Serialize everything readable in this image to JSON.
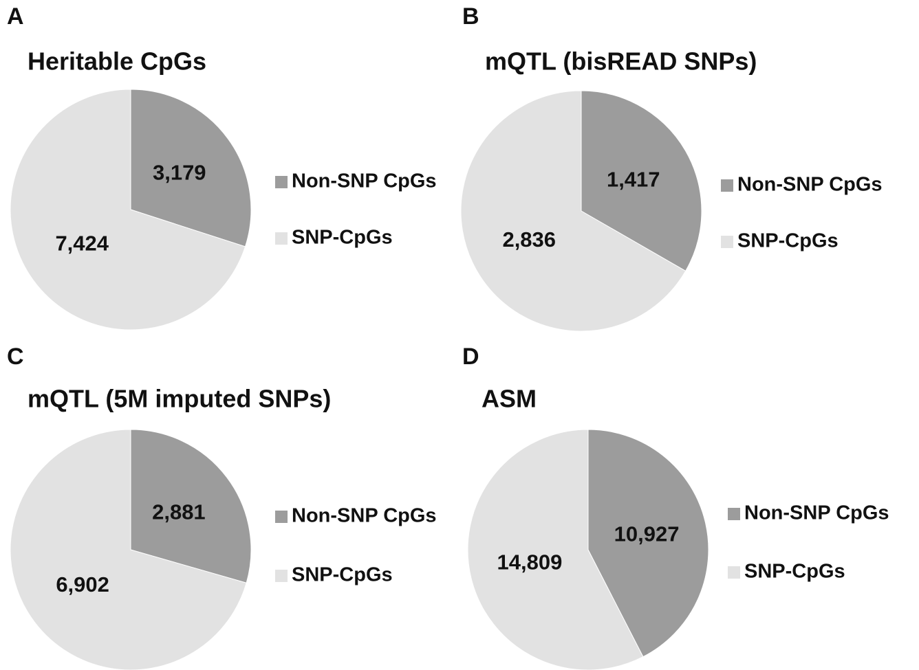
{
  "chart_data": [
    {
      "type": "pie",
      "panel": "A",
      "title": "Heritable CpGs",
      "categories": [
        "Non-SNP CpGs",
        "SNP-CpGs"
      ],
      "values": [
        3179,
        7424
      ],
      "value_labels": [
        "3,179",
        "7,424"
      ],
      "colors": [
        "#9c9c9c",
        "#e2e2e2"
      ]
    },
    {
      "type": "pie",
      "panel": "B",
      "title": "mQTL (bisREAD SNPs)",
      "categories": [
        "Non-SNP CpGs",
        "SNP-CpGs"
      ],
      "values": [
        1417,
        2836
      ],
      "value_labels": [
        "1,417",
        "2,836"
      ],
      "colors": [
        "#9c9c9c",
        "#e2e2e2"
      ]
    },
    {
      "type": "pie",
      "panel": "C",
      "title": "mQTL (5M imputed SNPs)",
      "categories": [
        "Non-SNP CpGs",
        "SNP-CpGs"
      ],
      "values": [
        2881,
        6902
      ],
      "value_labels": [
        "2,881",
        "6,902"
      ],
      "colors": [
        "#9c9c9c",
        "#e2e2e2"
      ]
    },
    {
      "type": "pie",
      "panel": "D",
      "title": "ASM",
      "categories": [
        "Non-SNP CpGs",
        "SNP-CpGs"
      ],
      "values": [
        10927,
        14809
      ],
      "value_labels": [
        "10,927",
        "14,809"
      ],
      "colors": [
        "#9c9c9c",
        "#e2e2e2"
      ]
    }
  ]
}
